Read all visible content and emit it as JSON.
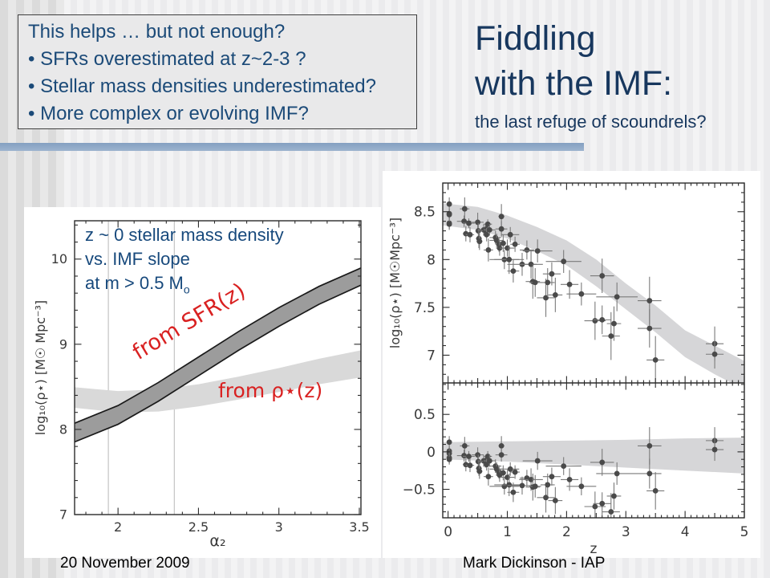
{
  "slide": {
    "textbox": {
      "lines": [
        "This helps … but not enough?",
        "• SFRs overestimated at z~2-3 ?",
        "• Stellar mass densities underestimated?",
        "• More complex or evolving IMF?"
      ]
    },
    "title": {
      "line1": "Fiddling",
      "line2": "with the IMF:",
      "subtitle": "the last refuge of scoundrels?"
    },
    "footer": {
      "date": "20 November 2009",
      "author": "Mark Dickinson - IAP"
    }
  },
  "colors": {
    "title_blue": "#17375e",
    "box_blue": "#1b4a78",
    "annotation_red": "#d92121",
    "divider_blue": "#8da7c4",
    "band_dark": "#9c9c9c",
    "band_dark_edge": "#1a1a1a",
    "band_light": "#d9d9d9",
    "point_gray": "#4a4a4a",
    "error_bar_gray": "#7a7a7a",
    "frame_gray": "#2b2b2b",
    "refline_gray": "#c4c4c4"
  },
  "chart_data": [
    {
      "type": "area",
      "name": "imf-slope-bands",
      "annotation_lines": [
        "z ~ 0 stellar mass density",
        "vs. IMF slope"
      ],
      "annotation_line3": {
        "main": "at m > 0.5 M",
        "sub": "o"
      },
      "xlabel": "α₂",
      "ylabel": "log₁₀(ρ⋆)  [M☉ Mpc⁻³]",
      "xlim": [
        1.73,
        3.51
      ],
      "ylim": [
        7.0,
        10.45
      ],
      "xticks": {
        "labeled": [
          2,
          2.5,
          3,
          3.5
        ],
        "minor_step": 0.1
      },
      "yticks": {
        "labeled": [
          7,
          8,
          9,
          10
        ],
        "minor_step": 0.2
      },
      "grid": false,
      "legend": "none",
      "vlines": [
        1.94,
        2.35
      ],
      "bands": [
        {
          "label": "from SFR(z)",
          "x": [
            1.73,
            2.0,
            2.25,
            2.5,
            2.75,
            3.0,
            3.25,
            3.5
          ],
          "top": [
            8.05,
            8.28,
            8.55,
            8.85,
            9.15,
            9.43,
            9.68,
            9.92
          ],
          "bottom": [
            7.83,
            8.06,
            8.33,
            8.63,
            8.93,
            9.21,
            9.47,
            9.72
          ],
          "fill": "#9c9c9c",
          "edge": "#1a1a1a"
        },
        {
          "label": "from ρ⋆(z)",
          "x": [
            1.73,
            2.0,
            2.25,
            2.5,
            2.75,
            3.0,
            3.25,
            3.5
          ],
          "top": [
            8.5,
            8.45,
            8.47,
            8.53,
            8.62,
            8.72,
            8.83,
            8.94
          ],
          "bottom": [
            8.26,
            8.2,
            8.21,
            8.27,
            8.35,
            8.44,
            8.53,
            8.62
          ],
          "fill": "#d9d9d9",
          "edge": "none"
        }
      ]
    },
    {
      "type": "scatter",
      "name": "mass-density-vs-redshift",
      "xlabel": "z",
      "xlim": [
        -0.09,
        5.0
      ],
      "xticks": {
        "labeled": [
          0,
          1,
          2,
          3,
          4,
          5
        ],
        "medium_step": 0.5,
        "minor_step": 0.1
      },
      "panels": [
        {
          "name": "log-rho-star",
          "ylabel": "log₁₀(ρ⋆)  [M☉Mpc⁻³]",
          "ylim": [
            6.71,
            8.8
          ],
          "yticks": {
            "labeled": [
              7,
              7.5,
              8,
              8.5
            ],
            "minor_step": 0.1
          },
          "band": {
            "x": [
              0,
              0.5,
              1,
              1.5,
              2,
              2.5,
              3,
              3.5,
              4,
              4.5,
              5
            ],
            "top": [
              8.59,
              8.55,
              8.46,
              8.34,
              8.2,
              8.0,
              7.75,
              7.52,
              7.26,
              7.1,
              6.93
            ],
            "bottom": [
              8.36,
              8.31,
              8.22,
              8.09,
              7.94,
              7.72,
              7.48,
              7.24,
              6.98,
              6.8,
              6.63
            ]
          }
        },
        {
          "name": "residuals",
          "ylabel": "",
          "ylim": [
            -0.88,
            0.92
          ],
          "yticks": {
            "labeled": [
              -0.5,
              0,
              0.5
            ],
            "minor_step": 0.1
          },
          "band": {
            "x": [
              0,
              1,
              2,
              3,
              4,
              5
            ],
            "top": [
              0.13,
              0.14,
              0.15,
              0.16,
              0.18,
              0.19
            ],
            "bottom": [
              -0.1,
              -0.13,
              -0.17,
              -0.21,
              -0.25,
              -0.29
            ]
          }
        }
      ],
      "points_columns": [
        "z",
        "z_err",
        "log10_rho",
        "log10_rho_err",
        "residual",
        "residual_err"
      ],
      "points": [
        [
          0.02,
          0.02,
          8.58,
          0.07,
          0.13,
          0.08
        ],
        [
          0.02,
          0.02,
          8.48,
          0.05,
          0.01,
          0.06
        ],
        [
          0.02,
          0.02,
          8.47,
          0.05,
          -0.02,
          0.06
        ],
        [
          0.02,
          0.02,
          8.38,
          0.06,
          -0.08,
          0.07
        ],
        [
          0.02,
          0.02,
          8.37,
          0.06,
          -0.1,
          0.07
        ],
        [
          0.28,
          0.08,
          8.53,
          0.12,
          0.08,
          0.12
        ],
        [
          0.27,
          0.12,
          8.4,
          0.06,
          -0.05,
          0.08
        ],
        [
          0.35,
          0.1,
          8.38,
          0.05,
          -0.06,
          0.07
        ],
        [
          0.3,
          0.05,
          8.27,
          0.08,
          -0.17,
          0.09
        ],
        [
          0.37,
          0.07,
          8.26,
          0.08,
          -0.18,
          0.09
        ],
        [
          0.5,
          0.1,
          8.39,
          0.1,
          -0.04,
          0.1
        ],
        [
          0.51,
          0.05,
          8.3,
          0.08,
          -0.13,
          0.09
        ],
        [
          0.52,
          0.05,
          8.22,
          0.1,
          -0.22,
          0.1
        ],
        [
          0.53,
          0.05,
          8.19,
          0.09,
          -0.26,
          0.1
        ],
        [
          0.6,
          0.1,
          8.31,
          0.06,
          -0.12,
          0.08
        ],
        [
          0.63,
          0.08,
          8.3,
          0.06,
          -0.13,
          0.08
        ],
        [
          0.65,
          0.05,
          8.32,
          0.07,
          -0.11,
          0.08
        ],
        [
          0.65,
          0.05,
          8.26,
          0.07,
          -0.17,
          0.08
        ],
        [
          0.67,
          0.07,
          8.37,
          0.05,
          -0.06,
          0.07
        ],
        [
          0.7,
          0.1,
          8.31,
          0.06,
          -0.12,
          0.08
        ],
        [
          0.68,
          0.08,
          8.1,
          0.12,
          -0.33,
          0.12
        ],
        [
          0.8,
          0.1,
          8.23,
          0.07,
          -0.19,
          0.09
        ],
        [
          0.82,
          0.12,
          8.2,
          0.07,
          -0.23,
          0.09
        ],
        [
          0.86,
          0.06,
          8.16,
          0.08,
          -0.27,
          0.09
        ],
        [
          0.87,
          0.06,
          8.12,
          0.08,
          -0.31,
          0.09
        ],
        [
          0.9,
          0.05,
          8.45,
          0.13,
          0.08,
          0.13
        ],
        [
          0.9,
          0.1,
          8.32,
          0.08,
          -0.04,
          0.09
        ],
        [
          0.93,
          0.05,
          8.17,
          0.09,
          -0.28,
          0.1
        ],
        [
          0.95,
          0.25,
          8.0,
          0.1,
          -0.46,
          0.11
        ],
        [
          1.0,
          0.12,
          8.12,
          0.09,
          -0.34,
          0.1
        ],
        [
          1.05,
          0.15,
          8.26,
          0.08,
          -0.23,
          0.09
        ],
        [
          1.03,
          0.25,
          8.0,
          0.15,
          -0.44,
          0.15
        ],
        [
          1.1,
          0.1,
          7.88,
          0.12,
          -0.54,
          0.13
        ],
        [
          1.13,
          0.08,
          8.16,
          0.08,
          -0.27,
          0.09
        ],
        [
          1.25,
          0.25,
          7.95,
          0.12,
          -0.45,
          0.12
        ],
        [
          1.33,
          0.12,
          8.1,
          0.1,
          -0.35,
          0.11
        ],
        [
          1.4,
          0.2,
          7.95,
          0.15,
          -0.37,
          0.15
        ],
        [
          1.43,
          0.12,
          7.77,
          0.18,
          -0.47,
          0.18
        ],
        [
          1.47,
          0.1,
          7.76,
          0.15,
          -0.46,
          0.15
        ],
        [
          1.51,
          0.25,
          8.09,
          0.12,
          -0.12,
          0.12
        ],
        [
          1.65,
          0.15,
          7.6,
          0.2,
          -0.61,
          0.2
        ],
        [
          1.68,
          0.12,
          7.76,
          0.15,
          -0.44,
          0.15
        ],
        [
          1.75,
          0.15,
          7.85,
          0.12,
          -0.33,
          0.12
        ],
        [
          1.81,
          0.12,
          7.63,
          0.18,
          -0.65,
          0.18
        ],
        [
          1.95,
          0.3,
          7.98,
          0.12,
          -0.19,
          0.12
        ],
        [
          2.05,
          0.15,
          7.74,
          0.15,
          -0.37,
          0.15
        ],
        [
          2.25,
          0.25,
          7.64,
          0.12,
          -0.46,
          0.12
        ],
        [
          2.48,
          0.18,
          7.36,
          0.2,
          -0.73,
          0.2
        ],
        [
          2.6,
          0.15,
          7.37,
          0.15,
          -0.69,
          0.15
        ],
        [
          2.6,
          0.2,
          7.83,
          0.18,
          -0.14,
          0.18
        ],
        [
          2.75,
          0.15,
          7.2,
          0.25,
          -0.8,
          0.25
        ],
        [
          2.8,
          0.12,
          7.33,
          0.18,
          -0.59,
          0.18
        ],
        [
          2.85,
          0.35,
          7.61,
          0.15,
          -0.29,
          0.15
        ],
        [
          3.4,
          0.2,
          7.57,
          0.25,
          0.08,
          0.25
        ],
        [
          3.4,
          0.2,
          7.28,
          0.2,
          -0.29,
          0.2
        ],
        [
          3.5,
          0.15,
          6.95,
          0.25,
          -0.52,
          0.25
        ],
        [
          4.5,
          0.15,
          7.12,
          0.18,
          0.15,
          0.18
        ],
        [
          4.5,
          0.15,
          7.01,
          0.15,
          0.03,
          0.15
        ]
      ]
    }
  ]
}
